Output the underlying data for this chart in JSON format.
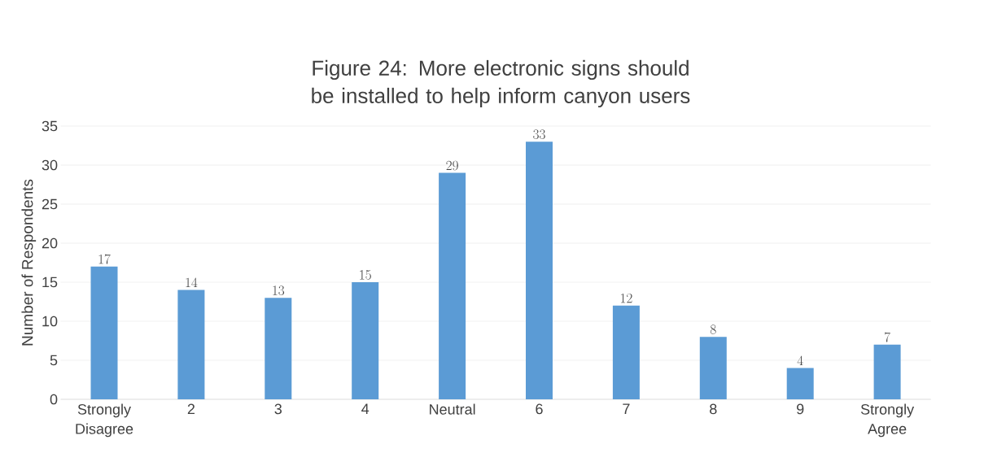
{
  "chart_data": {
    "type": "bar",
    "title": "Figure 24: More electronic signs should be installed to help inform canyon users",
    "ylabel": "Number of Respondents",
    "categories": [
      "Strongly Disagree",
      "2",
      "3",
      "4",
      "Neutral",
      "6",
      "7",
      "8",
      "9",
      "Strongly Agree"
    ],
    "values": [
      17,
      14,
      13,
      15,
      29,
      33,
      12,
      8,
      4,
      7
    ],
    "color": "#5b9bd5",
    "ylim": [
      0,
      35
    ],
    "yticks": [
      0,
      5,
      10,
      15,
      20,
      25,
      30,
      35
    ],
    "grid": "y",
    "data_labels": true
  }
}
